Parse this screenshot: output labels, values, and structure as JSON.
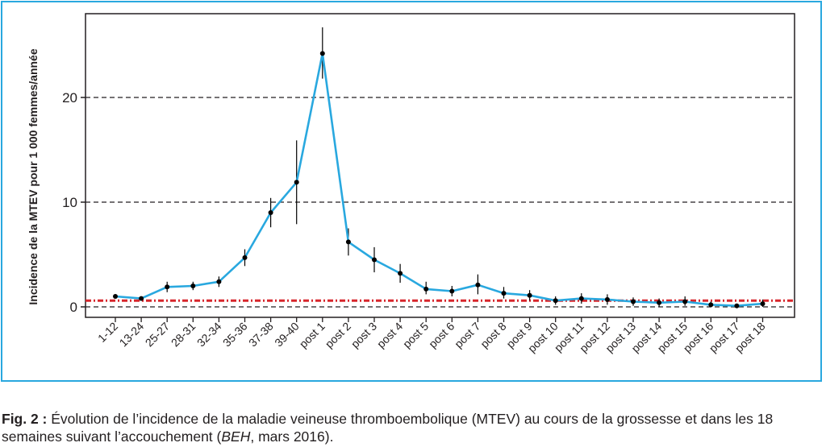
{
  "chart_data": {
    "type": "line",
    "xlabel": "",
    "ylabel": "Incidence de la MTEV pour 1 000 femmes/année",
    "ylim": [
      -1,
      28
    ],
    "yticks": [
      0,
      10,
      20
    ],
    "grid": "dashed horizontal lines at 0, 10, 20",
    "categories": [
      "1-12",
      "13-24",
      "25-27",
      "28-31",
      "32-34",
      "35-36",
      "37-38",
      "39-40",
      "post 1",
      "post 2",
      "post 3",
      "post 4",
      "post 5",
      "post 6",
      "post 7",
      "post 8",
      "post 9",
      "post 10",
      "post 11",
      "post 12",
      "post 13",
      "post 14",
      "post 15",
      "post 16",
      "post 17",
      "post 18"
    ],
    "series": [
      {
        "values": [
          1.0,
          0.8,
          1.9,
          2.0,
          2.4,
          4.7,
          9.0,
          11.9,
          24.2,
          6.2,
          4.5,
          3.2,
          1.7,
          1.5,
          2.1,
          1.3,
          1.1,
          0.6,
          0.8,
          0.7,
          0.5,
          0.4,
          0.5,
          0.2,
          0.1,
          0.3
        ],
        "error_low": [
          0.8,
          0.6,
          1.4,
          1.6,
          1.9,
          3.9,
          7.6,
          7.9,
          21.8,
          4.9,
          3.3,
          2.3,
          1.2,
          1.0,
          1.2,
          0.8,
          0.6,
          0.2,
          0.3,
          0.2,
          0.1,
          0.0,
          0.1,
          0.0,
          0.0,
          0.0
        ],
        "error_high": [
          1.2,
          1.0,
          2.4,
          2.4,
          2.9,
          5.5,
          10.4,
          15.9,
          26.7,
          7.5,
          5.7,
          4.1,
          2.4,
          2.0,
          3.1,
          1.9,
          1.6,
          1.0,
          1.3,
          1.2,
          0.9,
          0.8,
          1.0,
          0.5,
          0.3,
          0.7
        ],
        "color": "#29a8df"
      }
    ],
    "reference_line": {
      "value": 0.6,
      "color": "#d7262c",
      "style": "dash-dot"
    }
  },
  "colors": {
    "frame": "#29a8df",
    "line": "#29a8df",
    "reference": "#d7262c",
    "marker": "#000000"
  },
  "caption": {
    "prefix": "Fig. 2 :",
    "text_before": " Évolution de l’incidence de la maladie veineuse thromboembolique (MTEV) au cours de la grossesse et dans les 18 semaines suivant l’accouchement (",
    "italic": "BEH",
    "text_after": ", mars 2016)."
  }
}
